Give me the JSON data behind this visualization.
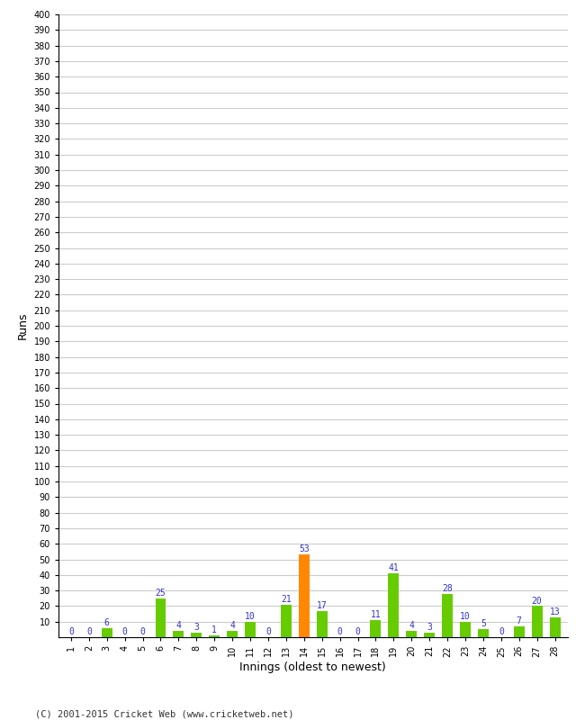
{
  "xlabel": "Innings (oldest to newest)",
  "ylabel": "Runs",
  "x_labels": [
    "1",
    "2",
    "3",
    "4",
    "5",
    "6",
    "7",
    "8",
    "9",
    "10",
    "11",
    "12",
    "13",
    "14",
    "15",
    "16",
    "17",
    "18",
    "19",
    "20",
    "21",
    "22",
    "23",
    "24",
    "25",
    "26",
    "27",
    "28"
  ],
  "values": [
    0,
    0,
    6,
    0,
    0,
    25,
    4,
    3,
    1,
    4,
    10,
    0,
    21,
    53,
    17,
    0,
    0,
    11,
    41,
    4,
    3,
    28,
    10,
    5,
    0,
    7,
    20,
    13
  ],
  "bar_colors": [
    "#66cc00",
    "#66cc00",
    "#66cc00",
    "#66cc00",
    "#66cc00",
    "#66cc00",
    "#66cc00",
    "#66cc00",
    "#66cc00",
    "#66cc00",
    "#66cc00",
    "#66cc00",
    "#66cc00",
    "#ff8800",
    "#66cc00",
    "#66cc00",
    "#66cc00",
    "#66cc00",
    "#66cc00",
    "#66cc00",
    "#66cc00",
    "#66cc00",
    "#66cc00",
    "#66cc00",
    "#66cc00",
    "#66cc00",
    "#66cc00",
    "#66cc00"
  ],
  "ylim": [
    0,
    400
  ],
  "yticks": [
    10,
    20,
    30,
    40,
    50,
    60,
    70,
    80,
    90,
    100,
    110,
    120,
    130,
    140,
    150,
    160,
    170,
    180,
    190,
    200,
    210,
    220,
    230,
    240,
    250,
    260,
    270,
    280,
    290,
    300,
    310,
    320,
    330,
    340,
    350,
    360,
    370,
    380,
    390,
    400
  ],
  "label_color": "#3333cc",
  "background_color": "#ffffff",
  "grid_color": "#cccccc",
  "footer": "(C) 2001-2015 Cricket Web (www.cricketweb.net)",
  "bar_width": 0.6
}
